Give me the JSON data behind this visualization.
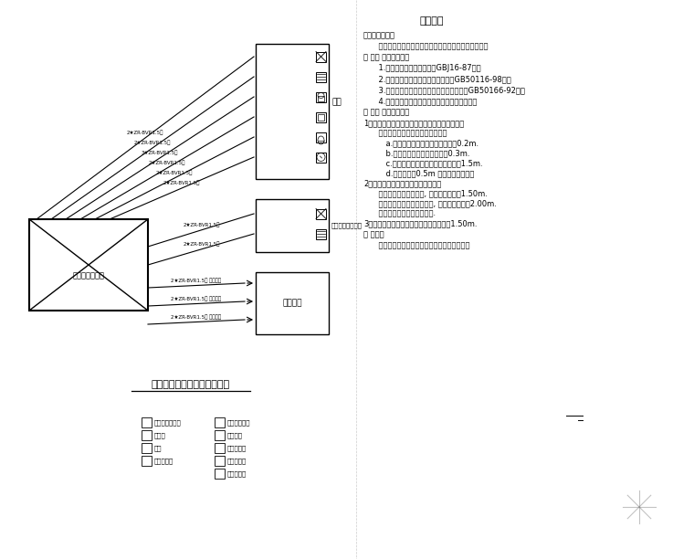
{
  "bg_color": "#ffffff",
  "line_color": "#000000",
  "title": "设计说明",
  "diagram_title": "七氟丙烷自动火灾报警系统图",
  "control_box_label": "气体灭火控制器",
  "right_top_box_label": "报警",
  "right_mid_box_label": "气体灵气灭火装置",
  "right_bottom_box_label": "消防中心",
  "wire_labels_top": [
    "2★ZR-BVR1.5＞",
    "2★ZR-BVR1.5＞",
    "3★ZR-BVR1.5＞",
    "2★ZR-BVR1.5＞",
    "2★ZR-BVR1.5＞",
    "2★ZR-BVR1.5＞"
  ],
  "wire_labels_mid": [
    "2★ZR-BVR1.5＞",
    "2★ZR-BVR1.5＞"
  ],
  "wire_labels_bottom": [
    "2★ZR-BVR1.5＞ 灭火信号",
    "2★ZR-BVR1.5＞ 起动信号",
    "2★ZR-BVR1.5＞ 反馈信号"
  ],
  "legend_col1_items": [
    "气体灭火控制盘",
    "烟感器",
    "手报",
    "放气指示灯"
  ],
  "legend_col2_items": [
    "火灾报警模块",
    "接口模块",
    "声光报警器",
    "气体灭火器",
    "气体灭火器"
  ],
  "design_notes": [
    "设计内容：",
    "    对本工程气体灭火区进行火灾自动报警系统工程设计。",
    "二 、设计依据：",
    "    1.《建筑设计防火规范》（GBJ16-87）。",
    "    2.《火灾自动报警系统设计规范》（GB50116-98）。",
    "    3.《火灾自动报警系统施工及验收规范》（GB50166-92）。",
    "    4.由相关委方或相关单位提供的相关设计条件。",
    "三 、施工说明：",
    "1、探测器安装在天花板上，尽量居中均匀布置，",
    "    其边缘距下列设施的边缘宜保持在",
    "    a.与届明灯具的水平净距不应小于0.2m.",
    "    b.与喷头的水平净距不应小于0.3m.",
    "    c.与空调送风口的水平净距不应小于1.5m.",
    "    d.探测器周围0.5m 内不应有遇障挡挖",
    "2、电缆穿管后在届顶内或墙内暗敏设",
    "    紧急届上按纳挂墙明装, 其下沿地距面高1.50m.",
    "    声光报警器与警播挂墙明装, 其下沿地距面二2.00m.",
    "    放气指示灯安装在门框上进.",
    "3、气体灭火控制器挂墙明装，下沿地距靤1.50m.",
    "四 、其它",
    "    其它未详尽之处根据国家有关规范严格执行。"
  ]
}
